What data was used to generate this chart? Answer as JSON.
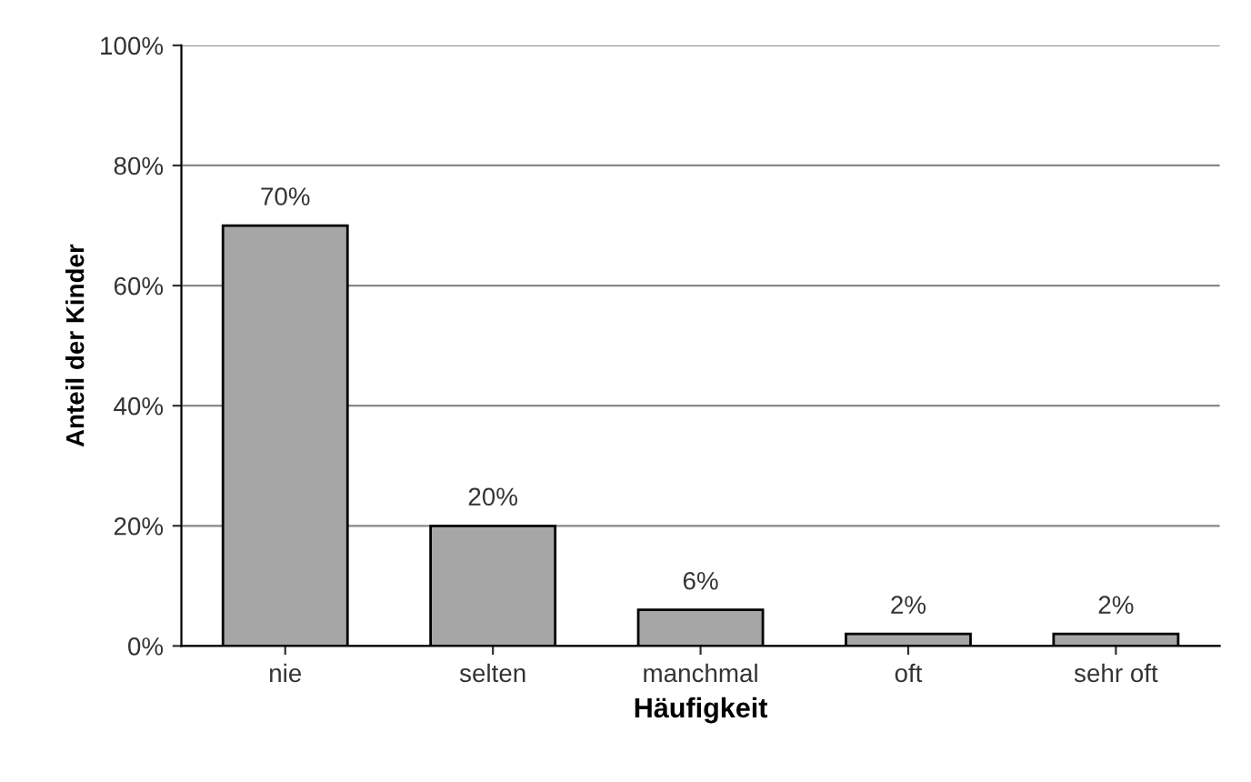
{
  "chart_data": {
    "type": "bar",
    "xlabel": "Häufigkeit",
    "ylabel": "Anteil der Kinder",
    "categories": [
      "nie",
      "selten",
      "manchmal",
      "oft",
      "sehr oft"
    ],
    "values": [
      70,
      20,
      6,
      2,
      2
    ],
    "value_labels": [
      "70%",
      "20%",
      "6%",
      "2%",
      "2%"
    ],
    "color": "#a6a6a6",
    "ylim": [
      0,
      100
    ],
    "yticks": [
      {
        "value": 0,
        "label": "0%"
      },
      {
        "value": 20,
        "label": "20%"
      },
      {
        "value": 40,
        "label": "40%"
      },
      {
        "value": 60,
        "label": "60%"
      },
      {
        "value": 80,
        "label": "80%"
      },
      {
        "value": 100,
        "label": "100%"
      }
    ],
    "grid": "y",
    "legend": false
  }
}
